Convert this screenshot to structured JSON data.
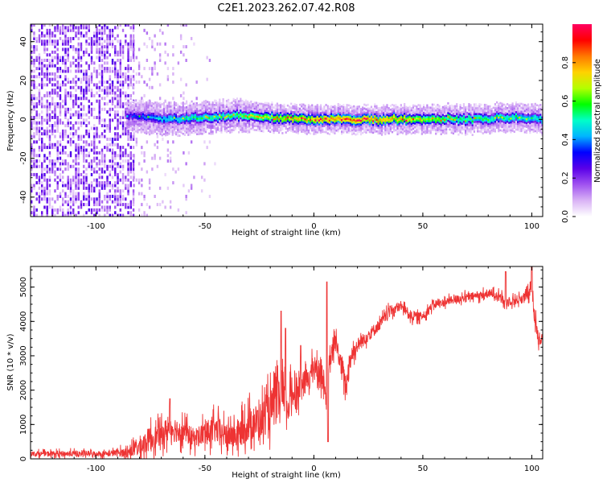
{
  "figure": {
    "title": "C2E1.2023.262.07.42.R08"
  },
  "chart_data": [
    {
      "type": "heatmap",
      "xlabel": "Height of straight line (km)",
      "ylabel": "Frequency (Hz)",
      "xlim": [
        -130,
        105
      ],
      "ylim": [
        -50,
        49
      ],
      "xticks": [
        -100,
        -50,
        0,
        50,
        100
      ],
      "yticks": [
        -40,
        -20,
        0,
        20,
        40
      ],
      "x_tick_labels": [
        "-100",
        "-50",
        "0",
        "50",
        "100"
      ],
      "y_tick_labels": [
        "-40",
        "-20",
        "0",
        "20",
        "40"
      ],
      "colorbar": {
        "label": "Normalized spectral amplitude",
        "range": [
          0.0,
          1.0
        ],
        "ticks": [
          0.0,
          0.2,
          0.4,
          0.6,
          0.8
        ],
        "tick_labels": [
          "0.0",
          "0.2",
          "0.4",
          "0.6",
          "0.8"
        ],
        "colormap": [
          "#ffffff",
          "#d9b3f5",
          "#a052f0",
          "#5a00e8",
          "#0000ff",
          "#00b4ff",
          "#00ffc8",
          "#00ff00",
          "#b4ff00",
          "#ffd200",
          "#ff7800",
          "#ff0000",
          "#ff0060"
        ]
      },
      "features": {
        "noise_region_x": [
          -130,
          -83
        ],
        "sparse_noise_region_x": [
          -83,
          -40
        ],
        "line_center_hz": [
          [
            -85,
            2
          ],
          [
            -70,
            0
          ],
          [
            -50,
            1
          ],
          [
            -35,
            2
          ],
          [
            -20,
            1
          ],
          [
            0,
            0
          ],
          [
            30,
            0
          ],
          [
            60,
            0
          ],
          [
            90,
            1
          ],
          [
            105,
            0
          ]
        ],
        "line_intensity": [
          [
            -85,
            0.3
          ],
          [
            -70,
            0.45
          ],
          [
            -50,
            0.55
          ],
          [
            -30,
            0.6
          ],
          [
            -15,
            0.7
          ],
          [
            0,
            0.8
          ],
          [
            20,
            0.85
          ],
          [
            40,
            0.75
          ],
          [
            60,
            0.6
          ],
          [
            80,
            0.55
          ],
          [
            105,
            0.5
          ]
        ]
      }
    },
    {
      "type": "line",
      "xlabel": "Height of straight line (km)",
      "ylabel": "SNR (10 * v/v)",
      "xlim": [
        -130,
        105
      ],
      "ylim": [
        0,
        5600
      ],
      "xticks": [
        -100,
        -50,
        0,
        50,
        100
      ],
      "yticks": [
        0,
        1000,
        2000,
        3000,
        4000,
        5000
      ],
      "x_tick_labels": [
        "-100",
        "-50",
        "0",
        "50",
        "100"
      ],
      "y_tick_labels": [
        "0",
        "1000",
        "2000",
        "3000",
        "4000",
        "5000"
      ],
      "series": [
        {
          "color": "#ee3333",
          "x": [
            -130,
            -110,
            -95,
            -85,
            -80,
            -75,
            -70,
            -66,
            -60,
            -55,
            -50,
            -45,
            -40,
            -35,
            -30,
            -25,
            -20,
            -15,
            -12,
            -10,
            -6,
            -3,
            0,
            3,
            5,
            6,
            7,
            8,
            10,
            14,
            15,
            16,
            18,
            20,
            25,
            30,
            35,
            40,
            45,
            50,
            55,
            60,
            65,
            70,
            75,
            80,
            85,
            88,
            90,
            95,
            99,
            100,
            101,
            103,
            105
          ],
          "y": [
            150,
            150,
            150,
            200,
            350,
            600,
            700,
            900,
            800,
            600,
            750,
            850,
            650,
            700,
            1000,
            1100,
            1400,
            1800,
            1500,
            1900,
            2100,
            2300,
            2700,
            2500,
            2200,
            1300,
            2600,
            3000,
            3400,
            2300,
            2100,
            2800,
            3100,
            3300,
            3600,
            3900,
            4300,
            4450,
            4150,
            4150,
            4500,
            4550,
            4650,
            4700,
            4750,
            4800,
            4780,
            4500,
            4600,
            4650,
            4800,
            5100,
            4300,
            3500,
            3500
          ],
          "noise_amplitude": [
            100,
            120,
            120,
            200,
            450,
            500,
            450,
            600,
            450,
            400,
            500,
            550,
            500,
            550,
            700,
            750,
            850,
            900,
            800,
            700,
            550,
            500,
            450,
            500,
            500,
            300,
            450,
            450,
            400,
            450,
            450,
            400,
            350,
            300,
            260,
            240,
            220,
            200,
            200,
            180,
            170,
            170,
            170,
            170,
            170,
            170,
            170,
            200,
            200,
            200,
            250,
            300,
            350,
            300,
            250
          ],
          "spikes": [
            [
              -66,
              1750
            ],
            [
              -15,
              4300
            ],
            [
              -13,
              3800
            ],
            [
              -6,
              3300
            ],
            [
              6,
              5150
            ],
            [
              6.5,
              500
            ],
            [
              35,
              4450
            ],
            [
              88,
              5450
            ],
            [
              100,
              5600
            ]
          ]
        }
      ]
    }
  ]
}
